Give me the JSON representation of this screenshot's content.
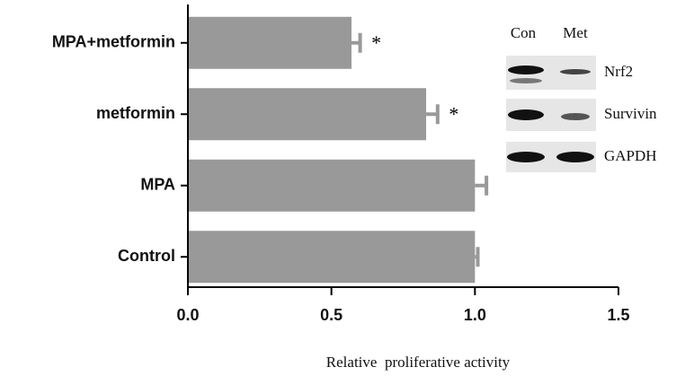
{
  "chart_data": {
    "type": "hbar",
    "x_label": "Relative  proliferative activity",
    "categories": [
      "MPA+metformin",
      "metformin",
      "MPA",
      "Control"
    ],
    "series": [
      {
        "color": "#999999",
        "values": [
          0.57,
          0.83,
          1.0,
          1.0
        ],
        "errors": [
          0.03,
          0.04,
          0.04,
          0.01
        ]
      }
    ],
    "annotations": [
      "*",
      "*",
      null,
      null
    ],
    "xlim": [
      0,
      1.5
    ],
    "xticks": [
      {
        "value": 0,
        "label": "0.0"
      },
      0.5,
      {
        "value": 1,
        "label": "1.0"
      },
      1.5
    ]
  },
  "blot": {
    "columns": [
      "Con",
      "Met"
    ],
    "rows": [
      "Nrf2",
      "Survivin",
      "GAPDH"
    ]
  }
}
